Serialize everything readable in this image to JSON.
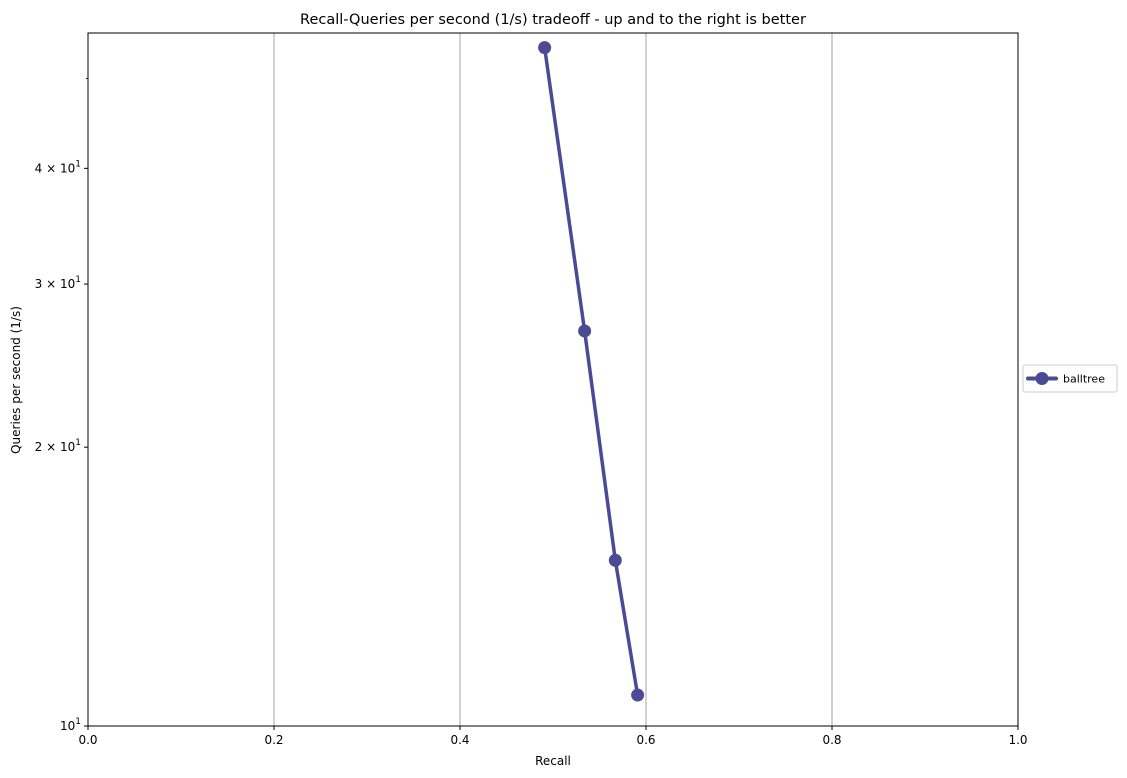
{
  "chart_data": {
    "type": "line",
    "title": "Recall-Queries per second (1/s) tradeoff - up and to the right is better",
    "xlabel": "Recall",
    "ylabel": "Queries per second (1/s)",
    "xlim": [
      0.0,
      1.0
    ],
    "ylim": [
      10,
      56
    ],
    "y_scale": "log",
    "grid": "vertical",
    "legend_position": "right",
    "x_ticks": [
      "0.0",
      "0.2",
      "0.4",
      "0.6",
      "0.8",
      "1.0"
    ],
    "y_ticks": [
      {
        "value": 10,
        "base": "10",
        "exp": "1"
      },
      {
        "value": 20,
        "base": "2 × 10",
        "exp": "1"
      },
      {
        "value": 30,
        "base": "3 × 10",
        "exp": "1"
      },
      {
        "value": 40,
        "base": "4 × 10",
        "exp": "1"
      }
    ],
    "series": [
      {
        "name": "balltree",
        "color": "#4b4a94",
        "x": [
          0.491,
          0.534,
          0.567,
          0.591
        ],
        "y": [
          54.0,
          26.7,
          15.1,
          10.8
        ]
      }
    ]
  }
}
